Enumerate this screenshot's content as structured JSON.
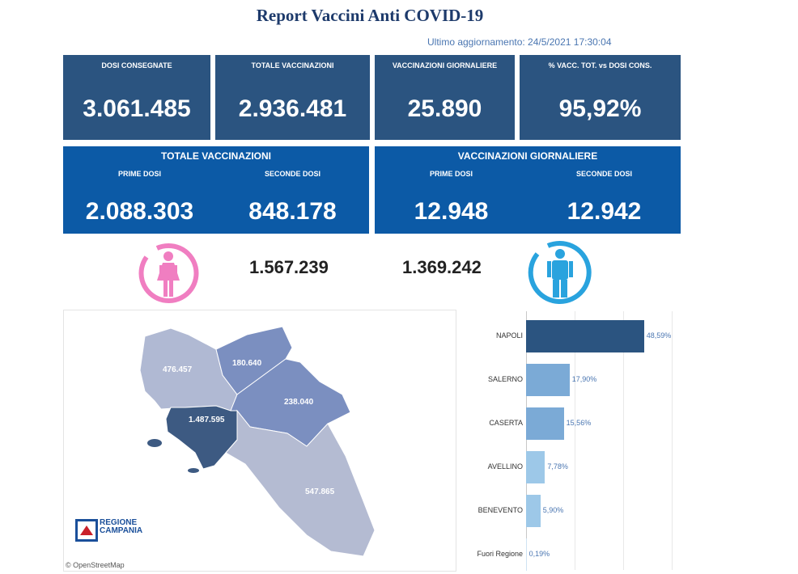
{
  "report": {
    "title": "Report Vaccini Anti COVID-19",
    "updated": "Ultimo aggiornamento: 24/5/2021  17:30:04"
  },
  "kpis": [
    {
      "label": "DOSI  CONSEGNATE",
      "value": "3.061.485"
    },
    {
      "label": "TOTALE VACCINAZIONI",
      "value": "2.936.481"
    },
    {
      "label": "VACCINAZIONI GIORNALIERE",
      "value": "25.890"
    },
    {
      "label": "% VACC. TOT. vs DOSI CONS.",
      "value": "95,92%"
    }
  ],
  "panels": [
    {
      "title": "TOTALE VACCINAZIONI",
      "first_label": "PRIME DOSI",
      "first_value": "2.088.303",
      "second_label": "SECONDE DOSI",
      "second_value": "848.178"
    },
    {
      "title": "VACCINAZIONI GIORNALIERE",
      "first_label": "PRIME DOSI",
      "first_value": "12.948",
      "second_label": "SECONDE DOSI",
      "second_value": "12.942"
    }
  ],
  "gender": {
    "female_value": "1.567.239",
    "male_value": "1.369.242",
    "female_color": "#f07ec1",
    "male_color": "#29a3de"
  },
  "map": {
    "regions": [
      {
        "name": "caserta",
        "value": "476.457",
        "color": "#b0b9d3"
      },
      {
        "name": "benevento",
        "value": "180.640",
        "color": "#7b8fc0"
      },
      {
        "name": "avellino",
        "value": "238.040",
        "color": "#7b8fc0"
      },
      {
        "name": "napoli",
        "value": "1.487.595",
        "color": "#3d5a82"
      },
      {
        "name": "salerno",
        "value": "547.865",
        "color": "#b4bbd2"
      }
    ],
    "logo_line1": "REGIONE",
    "logo_line2": "CAMPANIA",
    "attribution": "© OpenStreetMap"
  },
  "chart_data": {
    "type": "bar",
    "orientation": "horizontal",
    "categories": [
      "NAPOLI",
      "SALERNO",
      "CASERTA",
      "AVELLINO",
      "BENEVENTO",
      "Fuori Regione"
    ],
    "values": [
      48.59,
      17.9,
      15.56,
      7.78,
      5.9,
      0.19
    ],
    "value_labels": [
      "48,59%",
      "17,90%",
      "15,56%",
      "7,78%",
      "5,90%",
      "0,19%"
    ],
    "colors": [
      "#2b5480",
      "#7baad6",
      "#7baad6",
      "#9dc8e8",
      "#9dc8e8",
      "#cfe3f3"
    ],
    "xlim": [
      0,
      60
    ],
    "grid": true
  }
}
